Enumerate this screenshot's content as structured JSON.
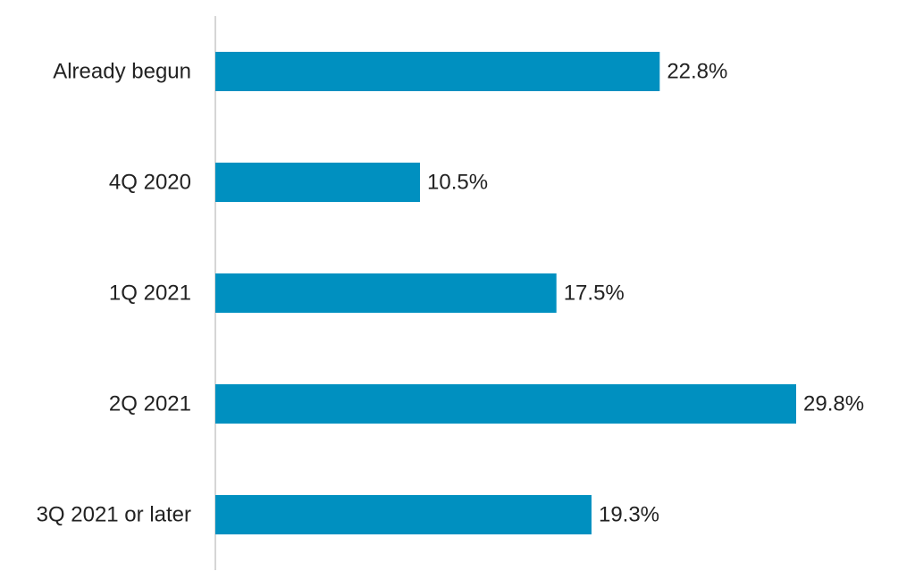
{
  "chart_data": {
    "type": "bar",
    "orientation": "horizontal",
    "categories": [
      "Already begun",
      "4Q 2020",
      "1Q 2021",
      "2Q 2021",
      "3Q 2021 or later"
    ],
    "values": [
      22.8,
      10.5,
      17.5,
      29.8,
      19.3
    ],
    "value_labels": [
      "22.8%",
      "10.5%",
      "17.5%",
      "29.8%",
      "19.3%"
    ],
    "unit": "%",
    "bar_color": "#0090c0",
    "axis_color": "#c8c8c8",
    "text_color": "#222222",
    "title": "",
    "xlabel": "",
    "ylabel": "",
    "xlim": [
      0,
      29.8
    ],
    "grid": false,
    "legend": "none"
  }
}
